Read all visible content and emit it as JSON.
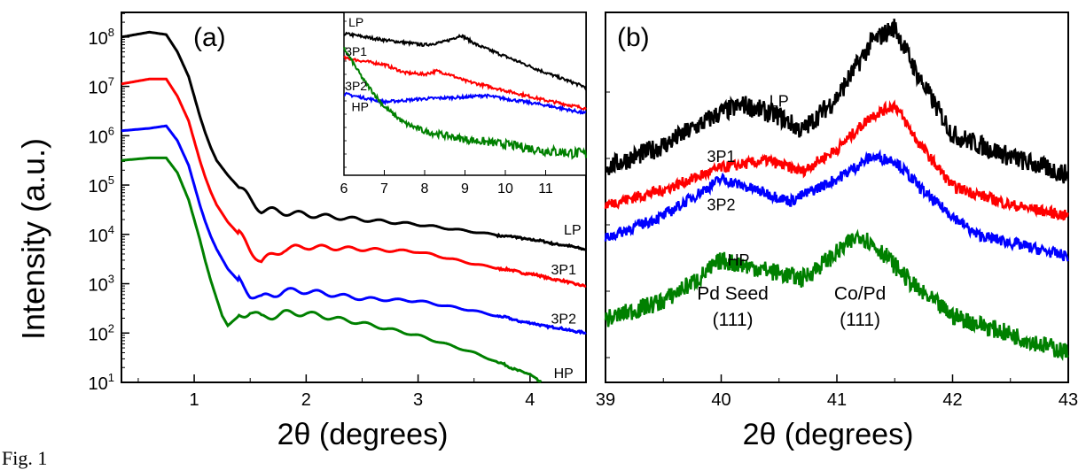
{
  "figure": {
    "y_axis_title": "Intensity (a.u.)",
    "caption": "Fig. 1"
  },
  "chart_data": [
    {
      "id": "a",
      "type": "line",
      "panel_label": "(a)",
      "xlabel": "2θ (degrees)",
      "ylabel": "Intensity (a.u.)",
      "xlim": [
        0.35,
        4.5
      ],
      "ylim": [
        1,
        8.5
      ],
      "y_scale": "log10",
      "x_ticks": [
        1,
        2,
        3,
        4
      ],
      "y_ticks": [
        {
          "exp": 1,
          "base": "10",
          "sup": "1"
        },
        {
          "exp": 2,
          "base": "10",
          "sup": "2"
        },
        {
          "exp": 3,
          "base": "10",
          "sup": "3"
        },
        {
          "exp": 4,
          "base": "10",
          "sup": "4"
        },
        {
          "exp": 5,
          "base": "10",
          "sup": "5"
        },
        {
          "exp": 6,
          "base": "10",
          "sup": "6"
        },
        {
          "exp": 7,
          "base": "10",
          "sup": "7"
        },
        {
          "exp": 8,
          "base": "10",
          "sup": "8"
        }
      ],
      "series": [
        {
          "name": "LP",
          "color": "#000000",
          "offset": 6.0,
          "x": [
            0.35,
            0.6,
            0.75,
            0.85,
            0.95,
            1.0,
            1.05,
            1.1,
            1.15,
            1.2,
            1.3,
            1.4,
            1.5,
            1.6,
            1.8,
            2.0,
            2.5,
            3.0,
            3.5,
            4.0,
            4.5
          ],
          "y": [
            8.0,
            8.1,
            8.05,
            7.7,
            7.2,
            6.8,
            6.4,
            6.05,
            5.75,
            5.5,
            5.2,
            4.95,
            4.7,
            4.5,
            4.45,
            4.4,
            4.3,
            4.2,
            4.05,
            3.9,
            3.7
          ]
        },
        {
          "name": "3P1",
          "color": "#ff0000",
          "offset": 5.0,
          "x": [
            0.35,
            0.6,
            0.75,
            0.85,
            0.95,
            1.0,
            1.05,
            1.1,
            1.15,
            1.2,
            1.3,
            1.4,
            1.5,
            1.6,
            1.8,
            2.0,
            2.5,
            3.0,
            3.5,
            4.0,
            4.5
          ],
          "y": [
            7.05,
            7.15,
            7.15,
            6.8,
            6.3,
            5.9,
            5.5,
            5.15,
            4.85,
            4.6,
            4.25,
            4.0,
            3.7,
            3.45,
            3.7,
            3.75,
            3.7,
            3.65,
            3.4,
            3.2,
            2.95
          ]
        },
        {
          "name": "3P2",
          "color": "#0000ff",
          "offset": 4.0,
          "x": [
            0.35,
            0.6,
            0.75,
            0.85,
            0.95,
            1.0,
            1.05,
            1.1,
            1.15,
            1.2,
            1.3,
            1.4,
            1.5,
            1.6,
            1.8,
            2.0,
            2.5,
            3.0,
            3.5,
            4.0,
            4.5
          ],
          "y": [
            6.1,
            6.15,
            6.2,
            5.9,
            5.4,
            5.0,
            4.6,
            4.25,
            3.95,
            3.7,
            3.3,
            3.05,
            2.8,
            2.7,
            2.85,
            2.85,
            2.7,
            2.65,
            2.45,
            2.2,
            2.0
          ]
        },
        {
          "name": "HP",
          "color": "#008000",
          "offset": 3.0,
          "x": [
            0.35,
            0.6,
            0.75,
            0.85,
            0.95,
            1.0,
            1.05,
            1.1,
            1.15,
            1.2,
            1.25,
            1.3,
            1.4,
            1.5,
            1.6,
            1.8,
            2.0,
            2.5,
            3.0,
            3.5,
            4.0,
            4.1
          ],
          "y": [
            5.5,
            5.55,
            5.55,
            5.25,
            4.7,
            4.3,
            3.9,
            3.45,
            3.05,
            2.7,
            2.35,
            2.15,
            2.35,
            2.45,
            2.3,
            2.4,
            2.4,
            2.2,
            1.95,
            1.6,
            1.15,
            1.0
          ]
        }
      ],
      "series_labels": [
        {
          "text": "LP",
          "x": 4.38,
          "y": 4.1
        },
        {
          "text": "3P1",
          "x": 4.3,
          "y": 3.3
        },
        {
          "text": "3P2",
          "x": 4.3,
          "y": 2.3
        },
        {
          "text": "HP",
          "x": 4.3,
          "y": 1.2
        }
      ],
      "inset": {
        "xlim": [
          6,
          12
        ],
        "x_ticks": [
          6,
          7,
          8,
          9,
          10,
          11
        ],
        "series": [
          {
            "name": "LP",
            "color": "#000000",
            "x": [
              6,
              7,
              8,
              8.5,
              8.9,
              9.3,
              10,
              11,
              12
            ],
            "y": [
              0.87,
              0.83,
              0.8,
              0.82,
              0.86,
              0.8,
              0.73,
              0.63,
              0.54
            ]
          },
          {
            "name": "3P1",
            "color": "#ff0000",
            "x": [
              6,
              7,
              7.5,
              8,
              8.3,
              8.6,
              9,
              10,
              11,
              12
            ],
            "y": [
              0.72,
              0.68,
              0.63,
              0.62,
              0.64,
              0.62,
              0.58,
              0.52,
              0.46,
              0.41
            ]
          },
          {
            "name": "3P2",
            "color": "#0000ff",
            "x": [
              6,
              7,
              8,
              9,
              9.5,
              10,
              11,
              12
            ],
            "y": [
              0.5,
              0.45,
              0.47,
              0.48,
              0.49,
              0.47,
              0.43,
              0.38
            ]
          },
          {
            "name": "HP",
            "color": "#008000",
            "x": [
              6,
              6.5,
              7,
              7.5,
              8,
              9,
              10,
              11,
              12
            ],
            "y": [
              0.78,
              0.58,
              0.42,
              0.32,
              0.27,
              0.22,
              0.19,
              0.15,
              0.13
            ]
          }
        ],
        "series_labels": [
          {
            "text": "LP",
            "x": 6.3,
            "y": 0.94
          },
          {
            "text": "3P1",
            "x": 6.3,
            "y": 0.76
          },
          {
            "text": "3P2",
            "x": 6.3,
            "y": 0.55
          },
          {
            "text": "HP",
            "x": 6.4,
            "y": 0.42
          }
        ]
      }
    },
    {
      "id": "b",
      "type": "line",
      "panel_label": "(b)",
      "xlabel": "2θ (degrees)",
      "xlim": [
        39,
        43
      ],
      "ylim": [
        0,
        1
      ],
      "x_ticks": [
        39,
        40,
        41,
        42,
        43
      ],
      "series": [
        {
          "name": "LP",
          "color": "#000000",
          "x": [
            39,
            39.5,
            40.0,
            40.2,
            40.5,
            40.7,
            41.0,
            41.3,
            41.5,
            41.7,
            42.0,
            42.5,
            43.0
          ],
          "y": [
            0.58,
            0.64,
            0.73,
            0.75,
            0.72,
            0.68,
            0.77,
            0.92,
            0.96,
            0.83,
            0.67,
            0.61,
            0.56
          ]
        },
        {
          "name": "3P1",
          "color": "#ff0000",
          "x": [
            39,
            39.5,
            40.0,
            40.4,
            40.7,
            41.0,
            41.3,
            41.5,
            41.7,
            42.0,
            42.5,
            43.0
          ],
          "y": [
            0.48,
            0.52,
            0.58,
            0.6,
            0.57,
            0.63,
            0.72,
            0.75,
            0.65,
            0.53,
            0.48,
            0.45
          ]
        },
        {
          "name": "3P2",
          "color": "#0000ff",
          "x": [
            39,
            39.5,
            39.8,
            40.0,
            40.2,
            40.6,
            41.0,
            41.3,
            41.5,
            41.8,
            42.2,
            42.6,
            43.0
          ],
          "y": [
            0.39,
            0.45,
            0.51,
            0.55,
            0.53,
            0.49,
            0.55,
            0.61,
            0.6,
            0.5,
            0.4,
            0.37,
            0.34
          ]
        },
        {
          "name": "HP",
          "color": "#008000",
          "x": [
            39,
            39.5,
            39.8,
            40.0,
            40.3,
            40.7,
            41.0,
            41.2,
            41.4,
            41.7,
            42.0,
            42.5,
            43.0
          ],
          "y": [
            0.17,
            0.22,
            0.28,
            0.33,
            0.31,
            0.28,
            0.35,
            0.4,
            0.35,
            0.25,
            0.18,
            0.13,
            0.08
          ]
        }
      ],
      "series_labels": [
        {
          "text": "LP",
          "x": 40.5,
          "y": 0.76
        },
        {
          "text": "3P1",
          "x": 40.0,
          "y": 0.61
        },
        {
          "text": "3P2",
          "x": 40.0,
          "y": 0.48
        },
        {
          "text": "HP",
          "x": 40.15,
          "y": 0.33
        }
      ],
      "annotations": [
        {
          "text": "Pd Seed",
          "x": 40.1,
          "y": 0.24
        },
        {
          "text": "(111)",
          "x": 40.1,
          "y": 0.17
        },
        {
          "text": "Co/Pd",
          "x": 41.2,
          "y": 0.24
        },
        {
          "text": "(111)",
          "x": 41.2,
          "y": 0.17
        }
      ]
    }
  ]
}
